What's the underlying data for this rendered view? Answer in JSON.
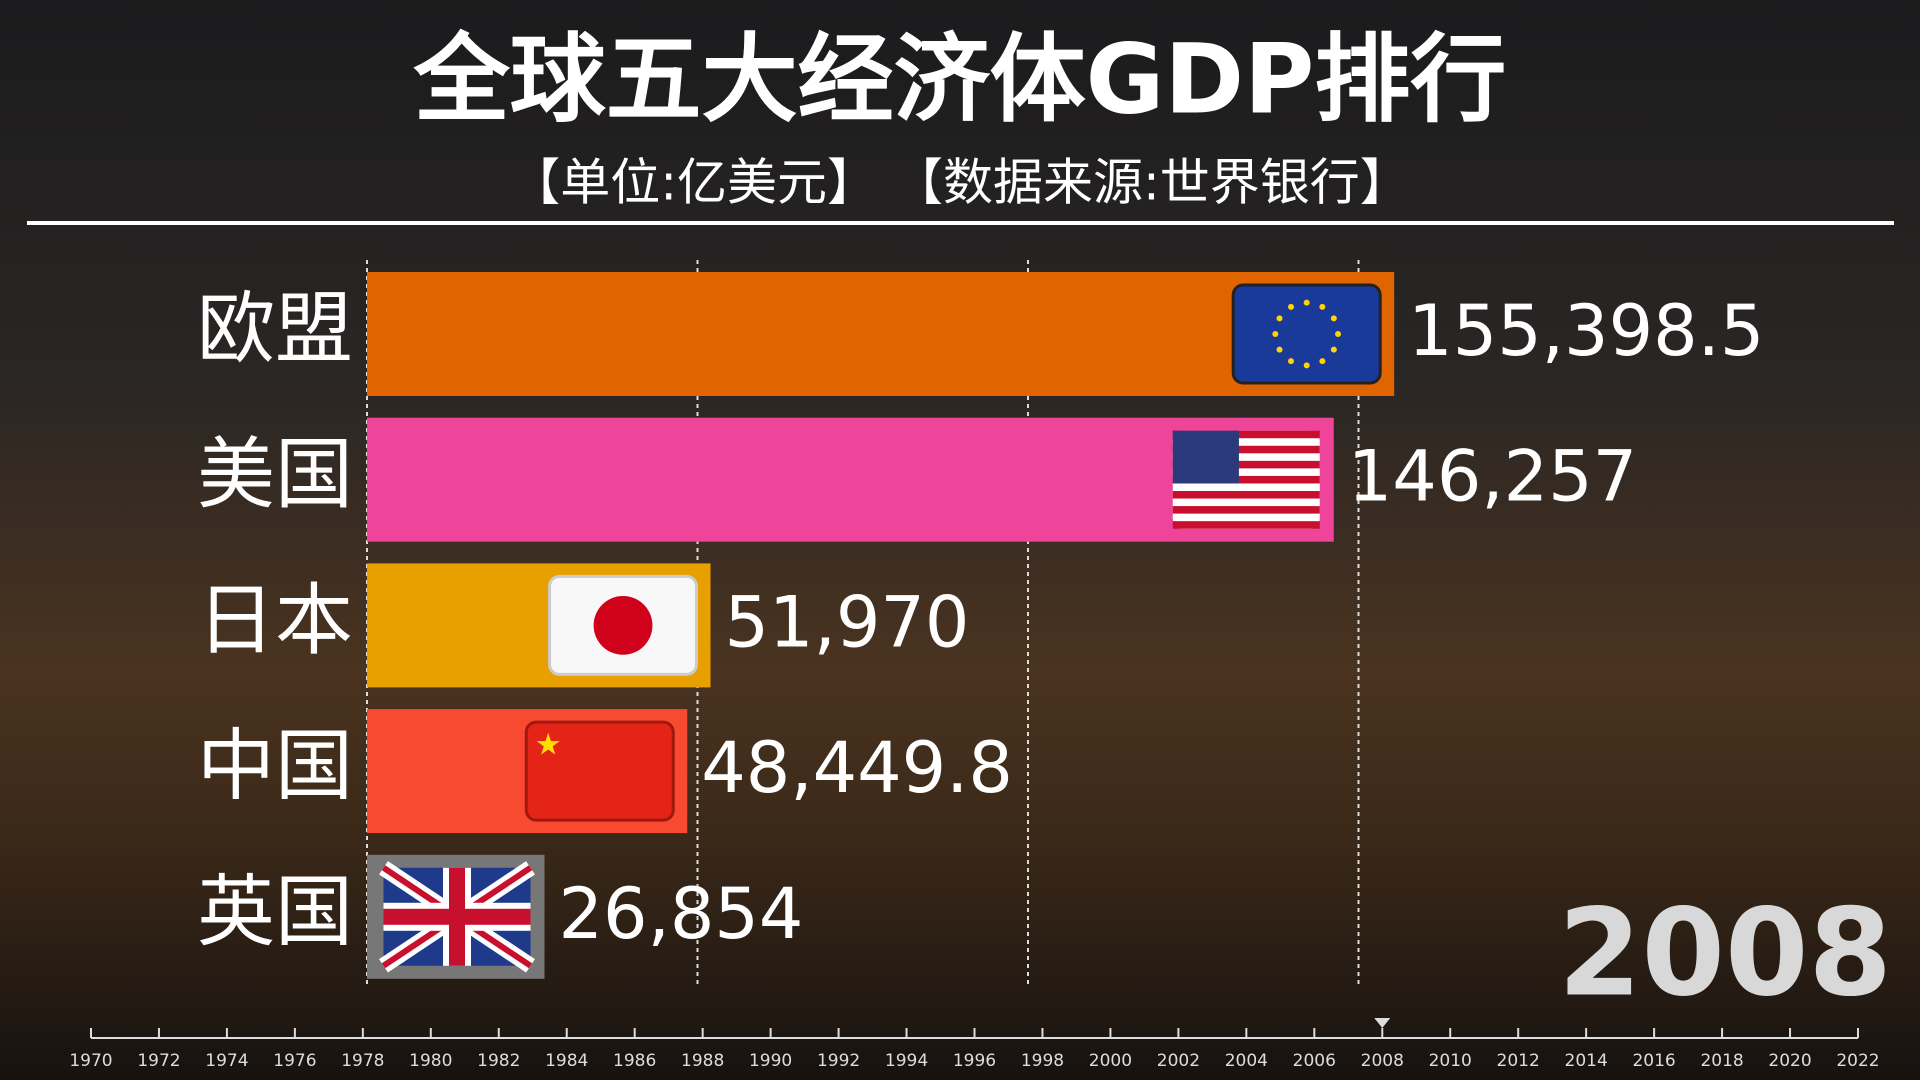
{
  "chart_data": {
    "type": "bar",
    "orientation": "horizontal",
    "title": "全球五大经济体GDP排行",
    "subtitle": "【单位:亿美元】 【数据来源:世界银行】",
    "categories": [
      "欧盟",
      "美国",
      "日本",
      "中国",
      "英国"
    ],
    "values": [
      155398.5,
      146257,
      51970,
      48449.8,
      26854
    ],
    "value_labels": [
      "155,398.5",
      "146,257",
      "51,970",
      "48,449.8",
      "26,854"
    ],
    "colors": [
      "#e06400",
      "#ee4499",
      "#e8a000",
      "#f84a30",
      "#777777"
    ],
    "xlim": [
      0,
      200000
    ],
    "xgrid": [
      50000,
      100000,
      150000
    ],
    "year": 2008,
    "timeline": {
      "lim": [
        1970,
        2022
      ],
      "ticks": [
        1970,
        1972,
        1974,
        1976,
        1978,
        1980,
        1982,
        1984,
        1986,
        1988,
        1990,
        1992,
        1994,
        1996,
        1998,
        2000,
        2002,
        2004,
        2006,
        2008,
        2010,
        2012,
        2014,
        2016,
        2018,
        2020,
        2022
      ]
    }
  }
}
